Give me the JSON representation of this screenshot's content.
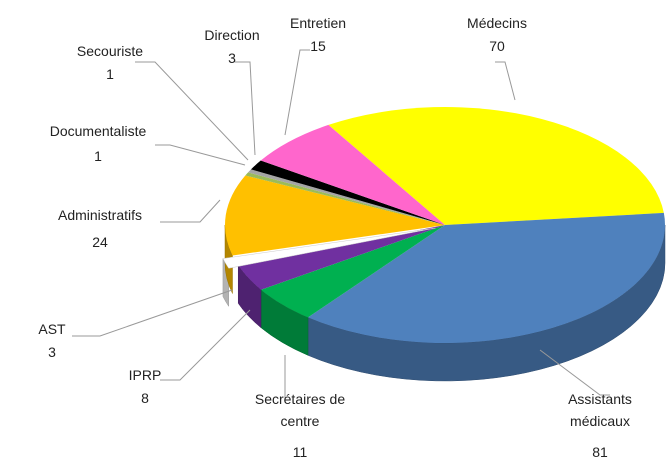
{
  "chart_data": {
    "type": "pie",
    "categories": [
      "Médecins",
      "Assistants médicaux",
      "Secrétaires de centre",
      "IPRP",
      "AST",
      "Administratifs",
      "Documentaliste",
      "Secouriste",
      "Direction",
      "Entretien"
    ],
    "values": [
      70,
      81,
      11,
      8,
      3,
      24,
      1,
      1,
      3,
      15
    ],
    "colors": [
      "#ffff00",
      "#4f81bd",
      "#00b050",
      "#7030a0",
      "#ffffff",
      "#ffc000",
      "#9bbb59",
      "#a5a5a5",
      "#000000",
      "#ff66cc"
    ]
  }
}
